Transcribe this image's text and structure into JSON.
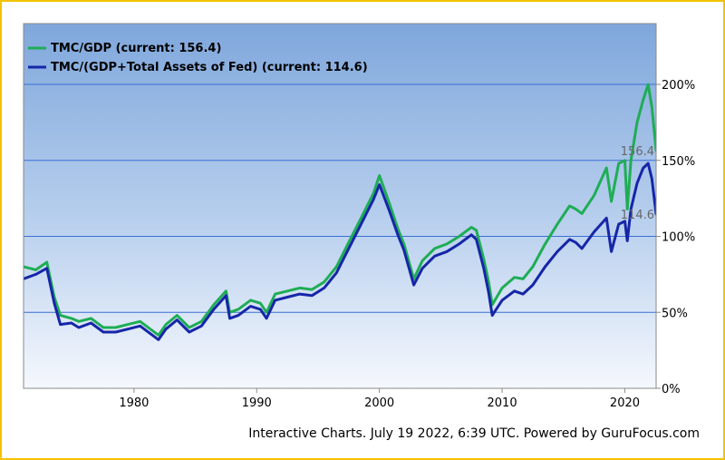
{
  "chart_data": {
    "type": "line",
    "legend_position": "top-left",
    "grid": true,
    "x_range": [
      1971,
      2022.55
    ],
    "ylim": [
      0,
      240
    ],
    "x_ticks": [
      1980,
      1990,
      2000,
      2010,
      2020
    ],
    "x_tick_labels": [
      "1980",
      "1990",
      "2000",
      "2010",
      "2020"
    ],
    "y_ticks": [
      0,
      50,
      100,
      150,
      200
    ],
    "y_tick_labels": [
      "0%",
      "50%",
      "100%",
      "150%",
      "200%"
    ],
    "series": [
      {
        "name": "TMC/GDP (current: 156.4)",
        "color": "#1fad55",
        "current_label": "156.4",
        "x": [
          1971.0,
          1972.0,
          1972.9,
          1973.5,
          1974.0,
          1974.9,
          1975.5,
          1976.5,
          1977.5,
          1978.5,
          1979.5,
          1980.5,
          1981.5,
          1982.0,
          1982.6,
          1983.5,
          1984.5,
          1985.5,
          1986.5,
          1987.5,
          1987.8,
          1988.5,
          1989.5,
          1990.3,
          1990.8,
          1991.5,
          1992.5,
          1993.5,
          1994.5,
          1995.5,
          1996.5,
          1997.5,
          1998.5,
          1999.0,
          1999.5,
          2000.0,
          2000.8,
          2001.5,
          2002.0,
          2002.8,
          2003.5,
          2004.5,
          2005.5,
          2006.5,
          2007.5,
          2007.9,
          2008.5,
          2008.9,
          2009.2,
          2010.0,
          2011.0,
          2011.7,
          2012.5,
          2013.5,
          2014.5,
          2015.5,
          2016.0,
          2016.5,
          2017.5,
          2018.5,
          2018.9,
          2019.5,
          2020.0,
          2020.2,
          2020.5,
          2021.0,
          2021.5,
          2021.9,
          2022.2,
          2022.55
        ],
        "y": [
          80,
          78,
          83,
          60,
          48,
          46,
          44,
          46,
          40,
          40,
          42,
          44,
          38,
          35,
          42,
          48,
          40,
          44,
          55,
          64,
          50,
          52,
          58,
          56,
          50,
          62,
          64,
          66,
          65,
          70,
          80,
          96,
          112,
          120,
          128,
          140,
          122,
          105,
          95,
          72,
          84,
          92,
          95,
          100,
          106,
          104,
          85,
          70,
          55,
          66,
          73,
          72,
          80,
          95,
          108,
          120,
          118,
          115,
          127,
          145,
          123,
          148,
          150,
          118,
          150,
          175,
          190,
          200,
          185,
          156.4
        ]
      },
      {
        "name": "TMC/(GDP+Total Assets of Fed) (current: 114.6)",
        "color": "#1626a8",
        "current_label": "114.6",
        "x": [
          1971.0,
          1972.0,
          1972.9,
          1973.5,
          1974.0,
          1974.9,
          1975.5,
          1976.5,
          1977.5,
          1978.5,
          1979.5,
          1980.5,
          1981.5,
          1982.0,
          1982.6,
          1983.5,
          1984.5,
          1985.5,
          1986.5,
          1987.5,
          1987.8,
          1988.5,
          1989.5,
          1990.3,
          1990.8,
          1991.5,
          1992.5,
          1993.5,
          1994.5,
          1995.5,
          1996.5,
          1997.5,
          1998.5,
          1999.0,
          1999.5,
          2000.0,
          2000.8,
          2001.5,
          2002.0,
          2002.8,
          2003.5,
          2004.5,
          2005.5,
          2006.5,
          2007.5,
          2007.9,
          2008.5,
          2008.9,
          2009.2,
          2010.0,
          2011.0,
          2011.7,
          2012.5,
          2013.5,
          2014.5,
          2015.5,
          2016.0,
          2016.5,
          2017.5,
          2018.5,
          2018.9,
          2019.5,
          2020.0,
          2020.2,
          2020.5,
          2021.0,
          2021.5,
          2021.9,
          2022.2,
          2022.55
        ],
        "y": [
          72,
          75,
          79,
          56,
          42,
          43,
          40,
          43,
          37,
          37,
          39,
          41,
          35,
          32,
          39,
          45,
          37,
          41,
          52,
          61,
          46,
          48,
          54,
          52,
          46,
          58,
          60,
          62,
          61,
          66,
          76,
          92,
          108,
          116,
          124,
          134,
          117,
          101,
          91,
          68,
          79,
          87,
          90,
          95,
          101,
          98,
          79,
          63,
          48,
          58,
          64,
          62,
          68,
          80,
          90,
          98,
          96,
          92,
          103,
          112,
          90,
          108,
          110,
          97,
          118,
          135,
          145,
          148,
          138,
          114.6
        ]
      }
    ]
  },
  "footer": {
    "text": "Interactive Charts. July 19 2022, 6:39 UTC. Powered by GuruFocus.com"
  }
}
